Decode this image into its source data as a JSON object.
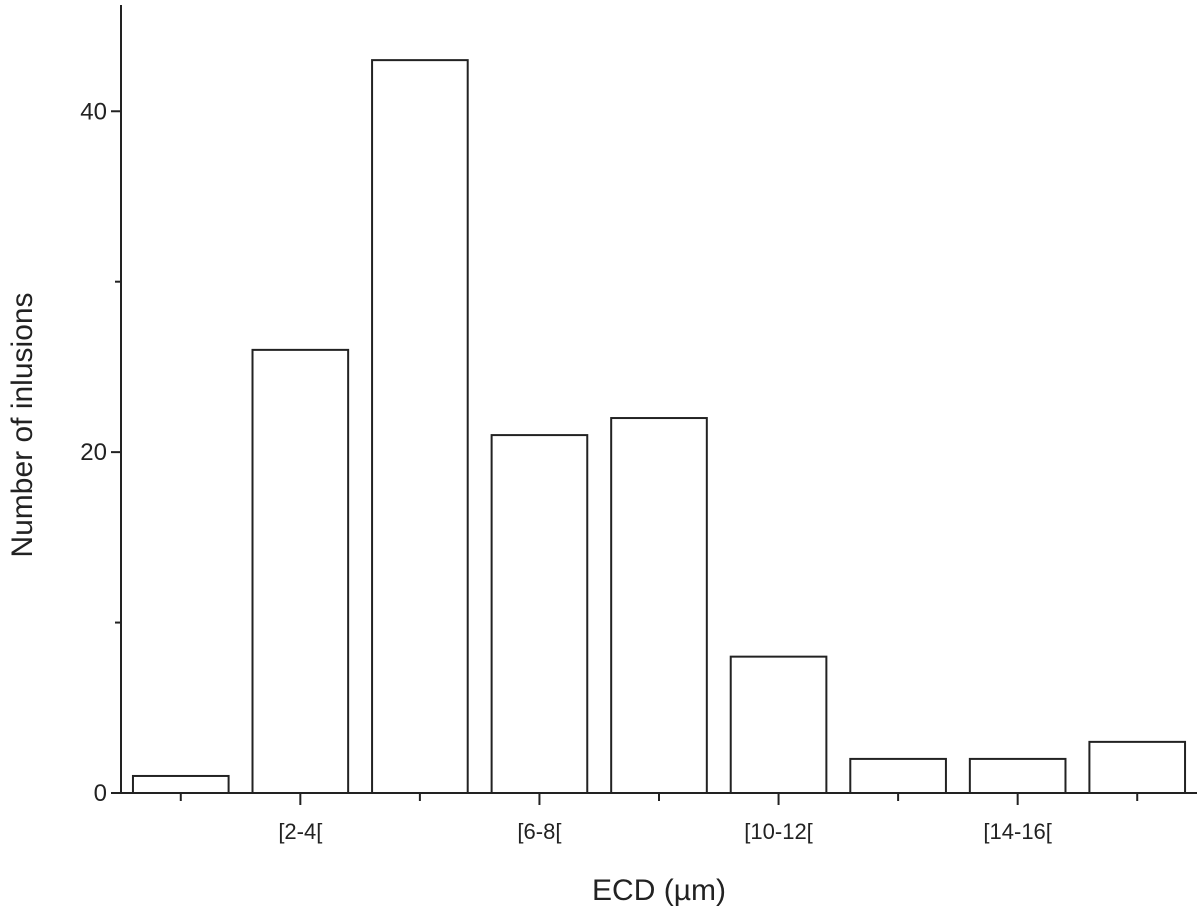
{
  "chart_data": {
    "type": "bar",
    "categories": [
      "",
      "[2-4[",
      "",
      "[6-8[",
      "",
      "[10-12[",
      "",
      "[14-16[",
      ""
    ],
    "values": [
      1,
      26,
      43,
      21,
      22,
      8,
      2,
      2,
      3
    ],
    "title": "",
    "xlabel": "ECD (µm)",
    "ylabel": "Number of inlusions",
    "ylim": [
      0,
      46
    ],
    "yticks": [
      0,
      20,
      40
    ],
    "yticks_labeled": [
      "0",
      "20",
      "40"
    ],
    "y_minor_ticks": [
      10,
      30
    ],
    "grid": false,
    "legend": "none",
    "colors": {
      "bar_fill": "#ffffff",
      "bar_edge": "#222222",
      "axis": "#222222"
    }
  }
}
